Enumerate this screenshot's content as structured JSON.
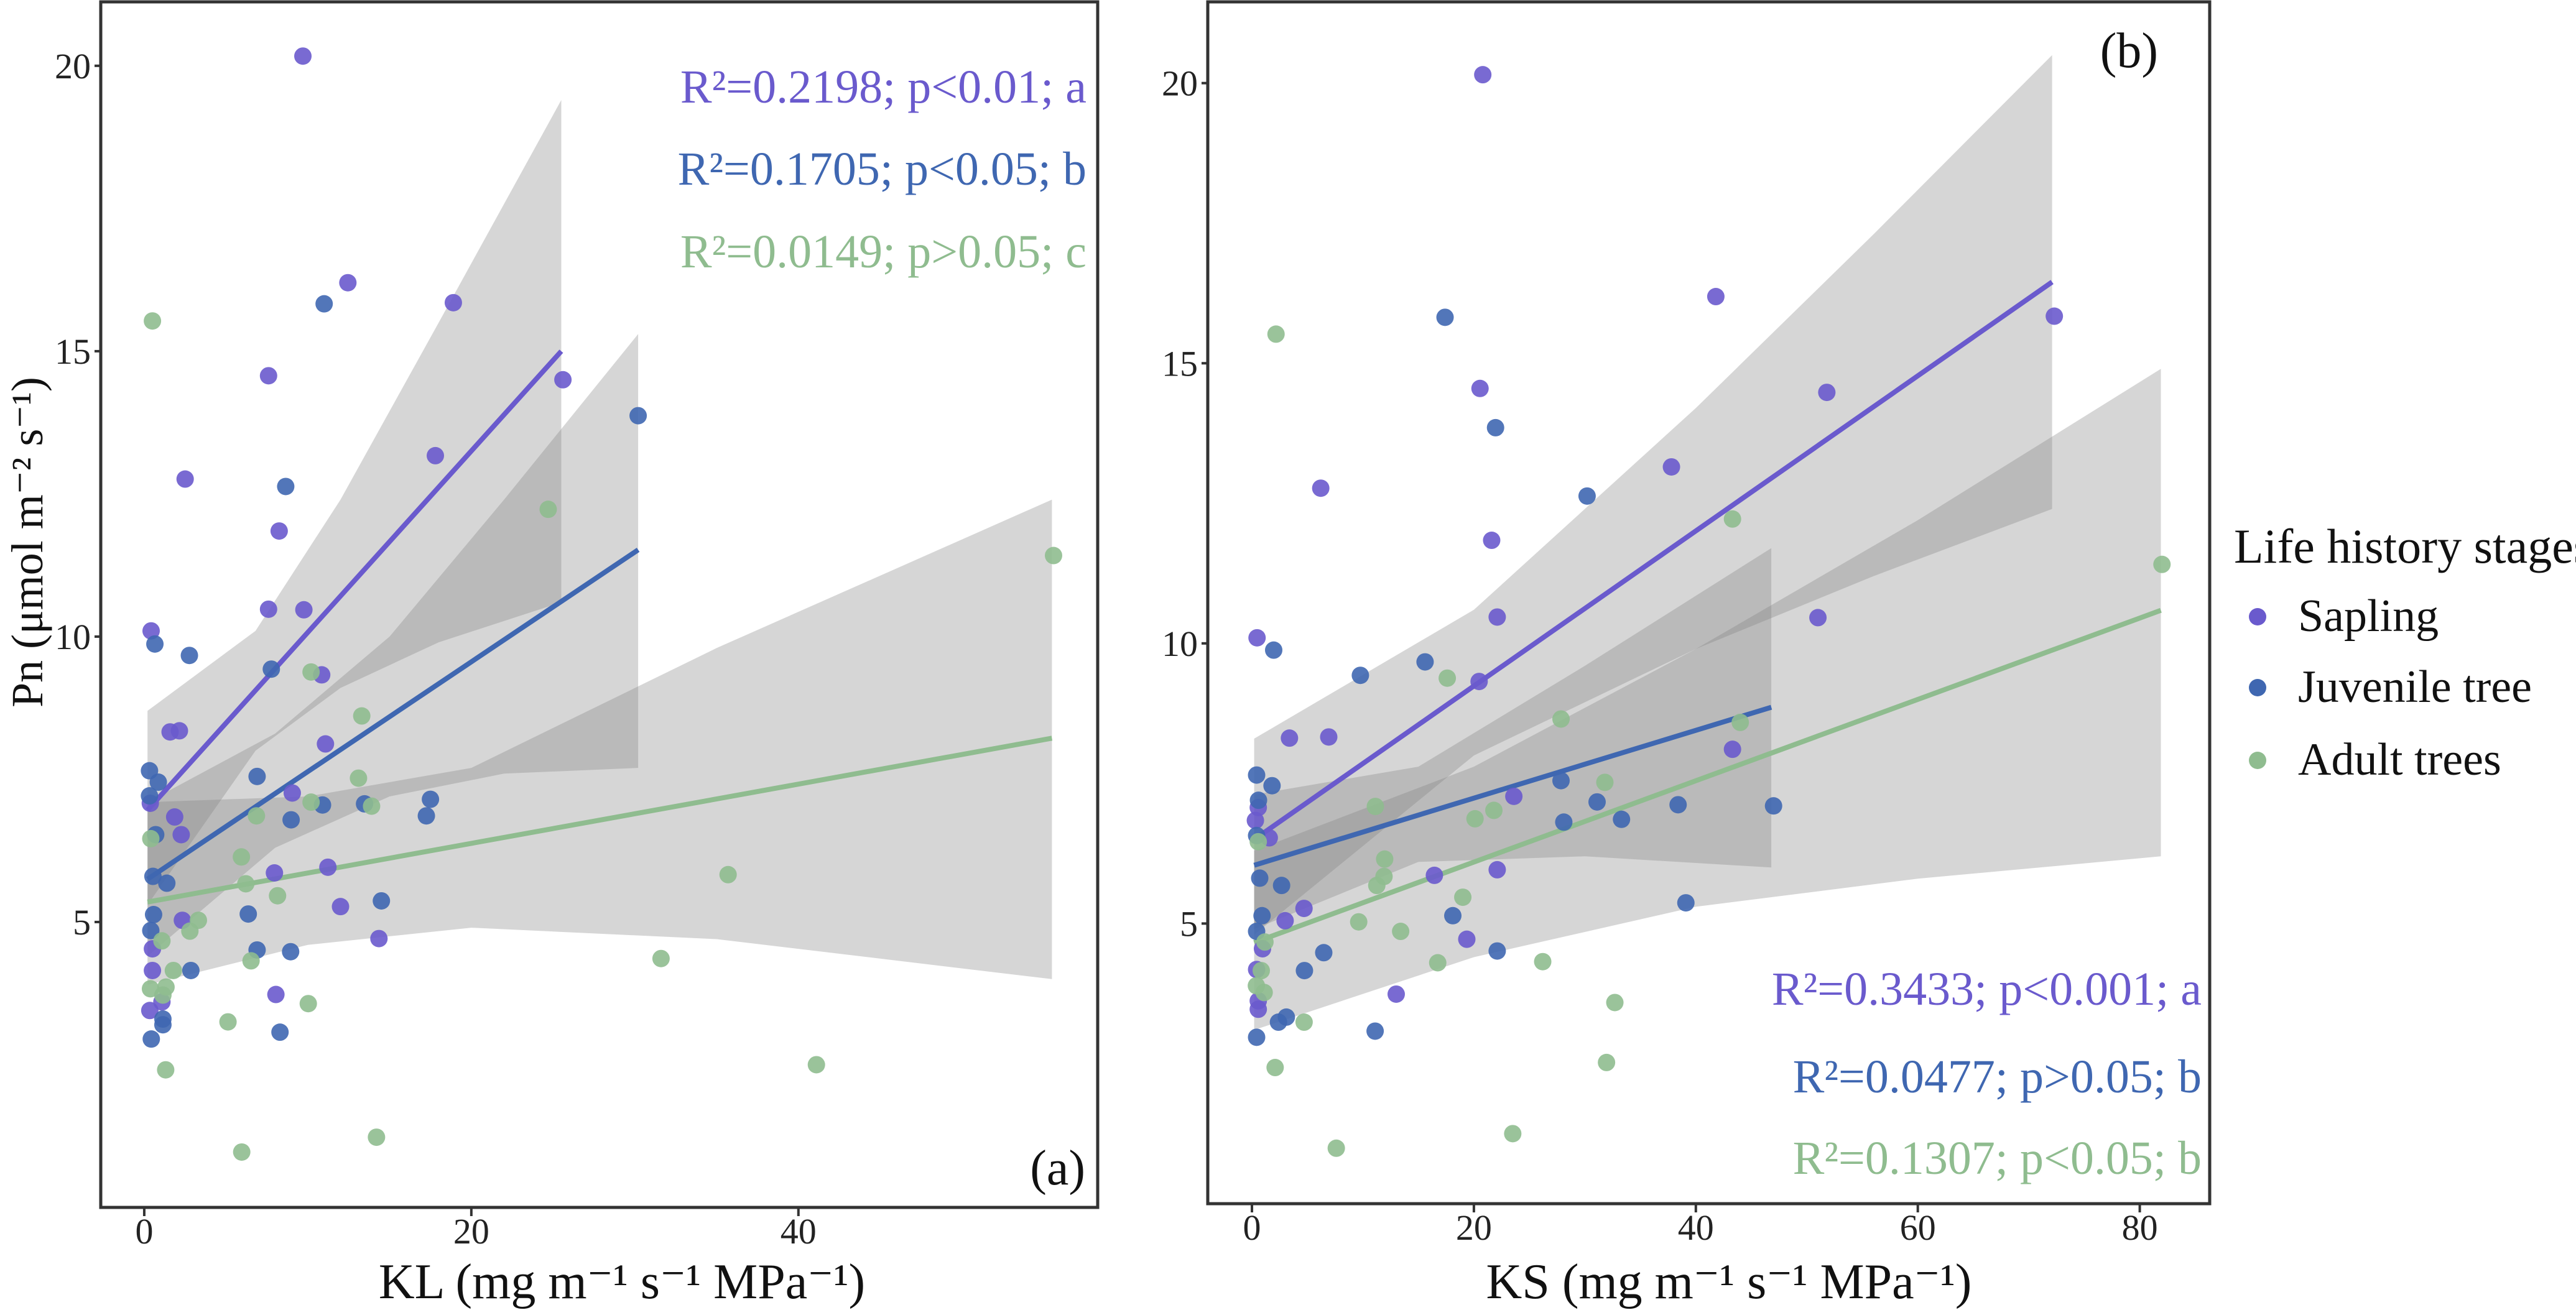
{
  "legend": {
    "title": "Life history stages",
    "items": [
      {
        "label": "Sapling",
        "color": "#6A5ACD"
      },
      {
        "label": "Juvenile tree",
        "color": "#3F67B1"
      },
      {
        "label": "Adult trees",
        "color": "#8FBC8F"
      }
    ]
  },
  "chart_data": [
    {
      "type": "scatter",
      "panel_label": "(a)",
      "xlabel": "KL (mg m⁻¹ s⁻¹ MPa⁻¹)",
      "ylabel": "Pn (μmol m⁻² s⁻¹)",
      "xlim": [
        -2.66,
        58.3
      ],
      "ylim": [
        0,
        21.12
      ],
      "xticks": [
        0,
        20,
        40
      ],
      "yticks": [
        5,
        10,
        15,
        20
      ],
      "grid": false,
      "annotations": [
        "R²=0.2198; p<0.01; a",
        "R²=0.1705; p<0.05; b",
        "R²=0.0149; p>0.05; c"
      ],
      "series": [
        {
          "name": "Sapling",
          "color": "#6A5ACD",
          "points": [
            [
              9.7,
              20.17
            ],
            [
              12.45,
              16.2
            ],
            [
              18.9,
              15.85
            ],
            [
              7.6,
              14.57
            ],
            [
              25.6,
              14.5
            ],
            [
              17.8,
              13.17
            ],
            [
              2.5,
              12.76
            ],
            [
              8.25,
              11.85
            ],
            [
              7.6,
              10.48
            ],
            [
              9.76,
              10.47
            ],
            [
              0.42,
              10.1
            ],
            [
              10.85,
              9.33
            ],
            [
              1.58,
              8.33
            ],
            [
              2.15,
              8.35
            ],
            [
              11.08,
              8.12
            ],
            [
              9.05,
              7.26
            ],
            [
              0.37,
              7.08
            ],
            [
              1.86,
              6.84
            ],
            [
              2.26,
              6.53
            ],
            [
              7.96,
              5.86
            ],
            [
              11.23,
              5.96
            ],
            [
              12.0,
              5.27
            ],
            [
              2.33,
              5.03
            ],
            [
              14.35,
              4.71
            ],
            [
              0.5,
              4.53
            ],
            [
              0.5,
              4.15
            ],
            [
              8.05,
              3.73
            ],
            [
              0.34,
              3.45
            ],
            [
              1.08,
              3.6
            ]
          ],
          "fit": [
            [
              0.2,
              6.96
            ],
            [
              25.5,
              15.0
            ]
          ],
          "band": [
            [
              0.2,
              5.3,
              8.7
            ],
            [
              6.8,
              8.0,
              10.1
            ],
            [
              12,
              9.1,
              12.4
            ],
            [
              18,
              9.9,
              15.5
            ],
            [
              25.5,
              10.6,
              19.4
            ]
          ]
        },
        {
          "name": "Juvenile tree",
          "color": "#3F67B1",
          "points": [
            [
              11.0,
              15.83
            ],
            [
              30.2,
              13.87
            ],
            [
              8.65,
              12.63
            ],
            [
              0.65,
              9.87
            ],
            [
              2.76,
              9.67
            ],
            [
              7.77,
              9.43
            ],
            [
              0.32,
              7.65
            ],
            [
              0.86,
              7.45
            ],
            [
              0.32,
              7.21
            ],
            [
              6.9,
              7.55
            ],
            [
              10.9,
              7.05
            ],
            [
              8.98,
              6.79
            ],
            [
              13.47,
              7.07
            ],
            [
              17.5,
              7.15
            ],
            [
              17.25,
              6.86
            ],
            [
              14.5,
              5.37
            ],
            [
              0.7,
              6.53
            ],
            [
              0.53,
              5.8
            ],
            [
              1.38,
              5.68
            ],
            [
              6.36,
              5.14
            ],
            [
              0.57,
              5.13
            ],
            [
              0.4,
              4.85
            ],
            [
              2.85,
              4.15
            ],
            [
              6.9,
              4.51
            ],
            [
              8.95,
              4.48
            ],
            [
              1.14,
              3.3
            ],
            [
              1.14,
              3.2
            ],
            [
              0.43,
              2.95
            ],
            [
              8.3,
              3.07
            ]
          ],
          "fit": [
            [
              0.2,
              5.75
            ],
            [
              30.2,
              11.52
            ]
          ],
          "band": [
            [
              0.2,
              4.4,
              7.1
            ],
            [
              8,
              6.3,
              8.3
            ],
            [
              15,
              7.2,
              10.0
            ],
            [
              22,
              7.6,
              12.4
            ],
            [
              30.2,
              7.7,
              15.3
            ]
          ]
        },
        {
          "name": "Adult trees",
          "color": "#8FBC8F",
          "points": [
            [
              0.5,
              15.53
            ],
            [
              24.7,
              12.23
            ],
            [
              55.6,
              11.42
            ],
            [
              10.2,
              9.38
            ],
            [
              13.3,
              8.61
            ],
            [
              13.1,
              7.52
            ],
            [
              13.9,
              7.03
            ],
            [
              10.2,
              7.1
            ],
            [
              6.86,
              6.86
            ],
            [
              0.4,
              6.46
            ],
            [
              5.94,
              6.14
            ],
            [
              6.21,
              5.67
            ],
            [
              8.15,
              5.46
            ],
            [
              35.7,
              5.83
            ],
            [
              3.31,
              5.03
            ],
            [
              2.79,
              4.84
            ],
            [
              1.08,
              4.67
            ],
            [
              1.78,
              4.15
            ],
            [
              6.53,
              4.32
            ],
            [
              31.6,
              4.36
            ],
            [
              0.38,
              3.83
            ],
            [
              1.33,
              3.86
            ],
            [
              1.14,
              3.72
            ],
            [
              5.12,
              3.25
            ],
            [
              10.03,
              3.57
            ],
            [
              1.31,
              2.41
            ],
            [
              41.1,
              2.5
            ],
            [
              5.96,
              0.97
            ],
            [
              14.2,
              1.23
            ]
          ],
          "fit": [
            [
              0.2,
              5.35
            ],
            [
              55.5,
              8.22
            ]
          ],
          "band": [
            [
              0.2,
              3.9,
              7.1
            ],
            [
              10,
              4.6,
              7.2
            ],
            [
              20,
              4.9,
              7.7
            ],
            [
              35,
              4.7,
              9.8
            ],
            [
              55.5,
              4.0,
              12.4
            ]
          ]
        }
      ]
    },
    {
      "type": "scatter",
      "panel_label": "(b)",
      "xlabel": "KS (mg m⁻¹ s⁻¹ MPa⁻¹)",
      "ylabel": "",
      "xlim": [
        -3.98,
        86.3
      ],
      "ylim": [
        0,
        21.45
      ],
      "xticks": [
        0,
        20,
        40,
        60,
        80
      ],
      "yticks": [
        5,
        10,
        15,
        20
      ],
      "grid": false,
      "annotations": [
        "R²=0.3433; p<0.001; a",
        "R²=0.0477; p>0.05; b",
        "R²=0.1307; p<0.05; b"
      ],
      "series": [
        {
          "name": "Sapling",
          "color": "#6A5ACD",
          "points": [
            [
              20.8,
              20.15
            ],
            [
              41.8,
              16.19
            ],
            [
              72.3,
              15.84
            ],
            [
              20.55,
              14.55
            ],
            [
              51.8,
              14.48
            ],
            [
              37.8,
              13.15
            ],
            [
              6.2,
              12.77
            ],
            [
              21.6,
              11.84
            ],
            [
              22.1,
              10.47
            ],
            [
              51.0,
              10.46
            ],
            [
              0.46,
              10.1
            ],
            [
              20.47,
              9.32
            ],
            [
              3.38,
              8.31
            ],
            [
              6.92,
              8.33
            ],
            [
              43.3,
              8.11
            ],
            [
              23.6,
              7.27
            ],
            [
              0.57,
              7.07
            ],
            [
              0.31,
              6.84
            ],
            [
              1.56,
              6.53
            ],
            [
              16.44,
              5.86
            ],
            [
              22.1,
              5.96
            ],
            [
              4.69,
              5.27
            ],
            [
              2.99,
              5.05
            ],
            [
              19.36,
              4.72
            ],
            [
              0.95,
              4.55
            ],
            [
              0.42,
              4.18
            ],
            [
              13.0,
              3.74
            ],
            [
              0.57,
              3.62
            ],
            [
              0.57,
              3.47
            ]
          ],
          "fit": [
            [
              0.2,
              6.5
            ],
            [
              72.1,
              16.45
            ]
          ],
          "band": [
            [
              0.2,
              4.8,
              8.3
            ],
            [
              20,
              8.0,
              10.6
            ],
            [
              40,
              9.9,
              14.2
            ],
            [
              56,
              11.2,
              17.3
            ],
            [
              72.1,
              12.4,
              20.5
            ]
          ]
        },
        {
          "name": "Juvenile tree",
          "color": "#3F67B1",
          "points": [
            [
              17.4,
              15.82
            ],
            [
              21.95,
              13.85
            ],
            [
              30.2,
              12.63
            ],
            [
              1.96,
              9.88
            ],
            [
              15.6,
              9.67
            ],
            [
              9.77,
              9.43
            ],
            [
              0.42,
              7.65
            ],
            [
              1.81,
              7.46
            ],
            [
              0.59,
              7.2
            ],
            [
              27.85,
              7.55
            ],
            [
              31.1,
              7.17
            ],
            [
              38.4,
              7.12
            ],
            [
              47.0,
              7.1
            ],
            [
              28.1,
              6.81
            ],
            [
              33.3,
              6.86
            ],
            [
              39.1,
              5.37
            ],
            [
              0.42,
              6.57
            ],
            [
              0.7,
              5.81
            ],
            [
              2.67,
              5.68
            ],
            [
              0.91,
              5.14
            ],
            [
              18.1,
              5.14
            ],
            [
              0.42,
              4.86
            ],
            [
              6.47,
              4.48
            ],
            [
              4.73,
              4.16
            ],
            [
              22.1,
              4.51
            ],
            [
              3.1,
              3.33
            ],
            [
              2.39,
              3.24
            ],
            [
              0.42,
              2.97
            ],
            [
              11.1,
              3.08
            ]
          ],
          "fit": [
            [
              0.2,
              6.04
            ],
            [
              46.8,
              8.86
            ]
          ],
          "band": [
            [
              0.2,
              4.9,
              7.3
            ],
            [
              15,
              6.1,
              7.8
            ],
            [
              30,
              6.2,
              9.6
            ],
            [
              46.8,
              6.0,
              11.7
            ]
          ]
        },
        {
          "name": "Adult trees",
          "color": "#8FBC8F",
          "points": [
            [
              2.17,
              15.52
            ],
            [
              43.3,
              12.22
            ],
            [
              82.0,
              11.41
            ],
            [
              17.6,
              9.38
            ],
            [
              27.85,
              8.65
            ],
            [
              44.0,
              8.59
            ],
            [
              31.8,
              7.52
            ],
            [
              11.12,
              7.09
            ],
            [
              20.1,
              6.87
            ],
            [
              21.8,
              7.02
            ],
            [
              0.57,
              6.46
            ],
            [
              11.96,
              6.15
            ],
            [
              11.9,
              5.84
            ],
            [
              11.25,
              5.68
            ],
            [
              19.0,
              5.47
            ],
            [
              9.62,
              5.03
            ],
            [
              13.4,
              4.86
            ],
            [
              1.17,
              4.67
            ],
            [
              0.84,
              4.16
            ],
            [
              16.74,
              4.3
            ],
            [
              26.2,
              4.32
            ],
            [
              0.4,
              3.89
            ],
            [
              1.1,
              3.77
            ],
            [
              4.7,
              3.24
            ],
            [
              32.7,
              3.59
            ],
            [
              2.09,
              2.43
            ],
            [
              31.95,
              2.52
            ],
            [
              7.6,
              0.99
            ],
            [
              23.5,
              1.25
            ]
          ],
          "fit": [
            [
              0.2,
              4.66
            ],
            [
              81.9,
              10.59
            ]
          ],
          "band": [
            [
              0.2,
              3.1,
              6.3
            ],
            [
              20,
              4.4,
              7.8
            ],
            [
              40,
              5.3,
              9.9
            ],
            [
              60,
              5.8,
              12.2
            ],
            [
              81.9,
              6.2,
              14.9
            ]
          ]
        }
      ]
    }
  ]
}
